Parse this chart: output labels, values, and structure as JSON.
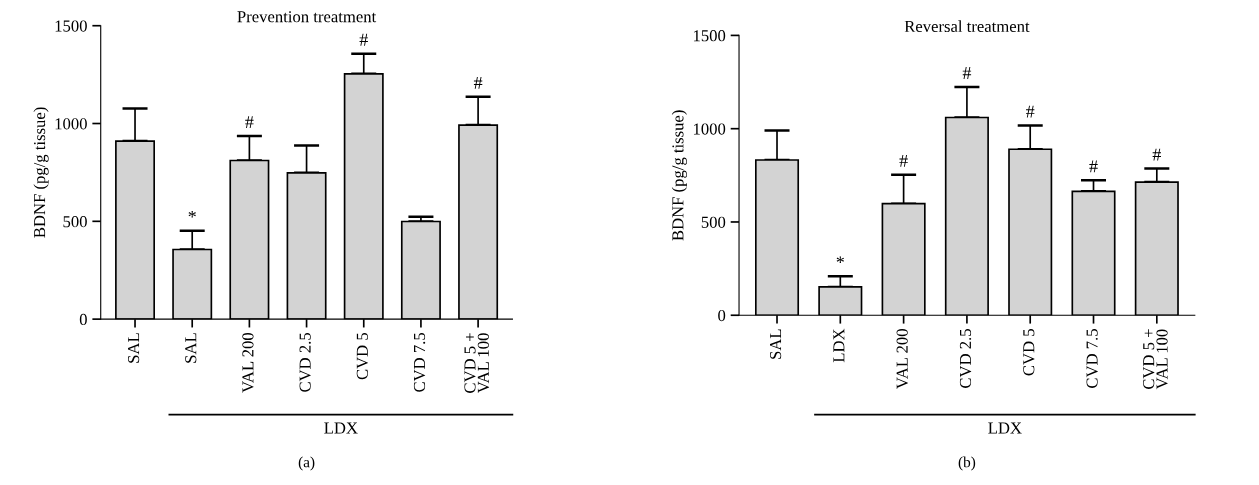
{
  "chart_data": [
    {
      "type": "bar",
      "title": "Prevention treatment",
      "ylabel": "BDNF (pg/g tissue)",
      "categories": [
        "SAL",
        "SAL",
        "VAL 200",
        "CVD 2.5",
        "CVD 5",
        "CVD 7.5",
        "CVD 5 +\nVAL 100"
      ],
      "series": [
        {
          "color": "#d3d3d3",
          "values": [
            910,
            356,
            811,
            748,
            1254,
            499,
            992
          ],
          "errors": [
            [
              910,
              1077
            ],
            [
              356,
              452
            ],
            [
              811,
              936
            ],
            [
              748,
              888
            ],
            [
              1254,
              1357
            ],
            [
              499,
              523
            ],
            [
              992,
              1137
            ]
          ],
          "value_labels": [
            null,
            "*",
            "#",
            null,
            "#",
            null,
            "#"
          ]
        }
      ],
      "ylim": [
        0,
        1500
      ],
      "yticks": [
        0,
        500,
        1000,
        1500
      ],
      "grid": false,
      "legend": false,
      "annotations": [
        "LDX",
        "(a)"
      ]
    },
    {
      "type": "bar",
      "title": "Reversal treatment",
      "ylabel": "BDNF (pg/g tissue)",
      "categories": [
        "SAL",
        "LDX",
        "VAL 200",
        "CVD 2.5",
        "CVD 5",
        "CVD 7.5",
        "CVD 5 +\nVAL 100"
      ],
      "series": [
        {
          "color": "#d3d3d3",
          "values": [
            832,
            152,
            598,
            1060,
            890,
            664,
            714
          ],
          "errors": [
            [
              832,
              990
            ],
            [
              152,
              209
            ],
            [
              598,
              753
            ],
            [
              1060,
              1224
            ],
            [
              890,
              1017
            ],
            [
              664,
              723
            ],
            [
              714,
              786
            ]
          ],
          "value_labels": [
            null,
            "*",
            "#",
            "#",
            "#",
            "#",
            "#"
          ]
        }
      ],
      "ylim": [
        0,
        1500
      ],
      "yticks": [
        0,
        500,
        1000,
        1500
      ],
      "grid": false,
      "legend": false,
      "annotations": [
        "LDX",
        "(b)"
      ]
    }
  ]
}
